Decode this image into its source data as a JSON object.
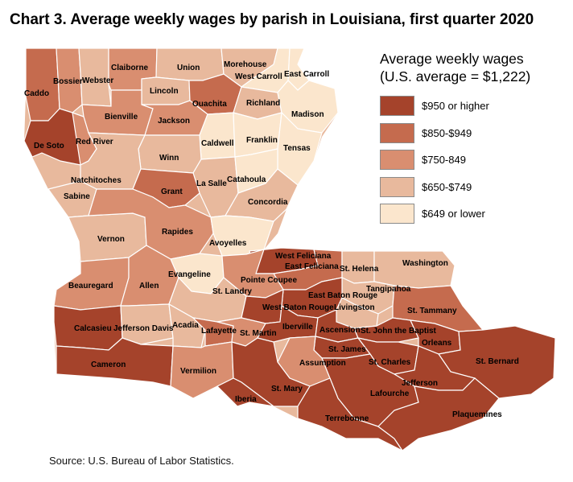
{
  "title": "Chart 3. Average weekly wages by parish in Louisiana, first quarter 2020",
  "legend": {
    "title_line1": "Average weekly wages",
    "title_line2": "(U.S. average = $1,222)",
    "items": [
      {
        "label": "$950 or higher",
        "color": "#a5432b"
      },
      {
        "label": "$850-$949",
        "color": "#c56b4e"
      },
      {
        "label": "$750-849",
        "color": "#d98e70"
      },
      {
        "label": "$650-$749",
        "color": "#e8b99d"
      },
      {
        "label": "$649 or lower",
        "color": "#fbe6cd"
      }
    ]
  },
  "source": "Source: U.S. Bureau of Labor Statistics.",
  "parishes": [
    {
      "name": "Caddo",
      "class": "$850-$949",
      "color": "#c56b4e"
    },
    {
      "name": "Bossier",
      "class": "$750-849",
      "color": "#d98e70"
    },
    {
      "name": "Webster",
      "class": "$650-$749",
      "color": "#e8b99d"
    },
    {
      "name": "Claiborne",
      "class": "$750-849",
      "color": "#d98e70"
    },
    {
      "name": "Union",
      "class": "$650-$749",
      "color": "#e8b99d"
    },
    {
      "name": "Morehouse",
      "class": "$650-$749",
      "color": "#e8b99d"
    },
    {
      "name": "West Carroll",
      "class": "$649 or lower",
      "color": "#fbe6cd"
    },
    {
      "name": "East Carroll",
      "class": "$649 or lower",
      "color": "#fbe6cd"
    },
    {
      "name": "Lincoln",
      "class": "$650-$749",
      "color": "#e8b99d"
    },
    {
      "name": "Ouachita",
      "class": "$850-$949",
      "color": "#c56b4e"
    },
    {
      "name": "Richland",
      "class": "$650-$749",
      "color": "#e8b99d"
    },
    {
      "name": "Madison",
      "class": "$649 or lower",
      "color": "#fbe6cd"
    },
    {
      "name": "Bienville",
      "class": "$750-849",
      "color": "#d98e70"
    },
    {
      "name": "Jackson",
      "class": "$750-849",
      "color": "#d98e70"
    },
    {
      "name": "De Soto",
      "class": "$950 or higher",
      "color": "#a5432b"
    },
    {
      "name": "Red River",
      "class": "$750-849",
      "color": "#d98e70"
    },
    {
      "name": "Caldwell",
      "class": "$649 or lower",
      "color": "#fbe6cd"
    },
    {
      "name": "Franklin",
      "class": "$649 or lower",
      "color": "#fbe6cd"
    },
    {
      "name": "Tensas",
      "class": "$649 or lower",
      "color": "#fbe6cd"
    },
    {
      "name": "Winn",
      "class": "$650-$749",
      "color": "#e8b99d"
    },
    {
      "name": "Natchitoches",
      "class": "$650-$749",
      "color": "#e8b99d"
    },
    {
      "name": "La Salle",
      "class": "$650-$749",
      "color": "#e8b99d"
    },
    {
      "name": "Catahoula",
      "class": "$649 or lower",
      "color": "#fbe6cd"
    },
    {
      "name": "Grant",
      "class": "$850-$949",
      "color": "#c56b4e"
    },
    {
      "name": "Sabine",
      "class": "$650-$749",
      "color": "#e8b99d"
    },
    {
      "name": "Concordia",
      "class": "$650-$749",
      "color": "#e8b99d"
    },
    {
      "name": "Vernon",
      "class": "$650-$749",
      "color": "#e8b99d"
    },
    {
      "name": "Rapides",
      "class": "$750-849",
      "color": "#d98e70"
    },
    {
      "name": "Avoyelles",
      "class": "$649 or lower",
      "color": "#fbe6cd"
    },
    {
      "name": "West Feliciana",
      "class": "$950 or higher",
      "color": "#a5432b"
    },
    {
      "name": "East Feliciana",
      "class": "$850-$949",
      "color": "#c56b4e"
    },
    {
      "name": "St. Helena",
      "class": "$650-$749",
      "color": "#e8b99d"
    },
    {
      "name": "Washington",
      "class": "$650-$749",
      "color": "#e8b99d"
    },
    {
      "name": "Evangeline",
      "class": "$649 or lower",
      "color": "#fbe6cd"
    },
    {
      "name": "Pointe Coupee",
      "class": "$750-849",
      "color": "#d98e70"
    },
    {
      "name": "Tangipahoa",
      "class": "$650-$749",
      "color": "#e8b99d"
    },
    {
      "name": "Beauregard",
      "class": "$750-849",
      "color": "#d98e70"
    },
    {
      "name": "Allen",
      "class": "$750-849",
      "color": "#d98e70"
    },
    {
      "name": "St. Landry",
      "class": "$650-$749",
      "color": "#e8b99d"
    },
    {
      "name": "East Baton Rouge",
      "class": "$950 or higher",
      "color": "#a5432b"
    },
    {
      "name": "West Baton Rouge",
      "class": "$950 or higher",
      "color": "#a5432b"
    },
    {
      "name": "Livingston",
      "class": "$650-$749",
      "color": "#e8b99d"
    },
    {
      "name": "St. Tammany",
      "class": "$850-$949",
      "color": "#c56b4e"
    },
    {
      "name": "Calcasieu",
      "class": "$950 or higher",
      "color": "#a5432b"
    },
    {
      "name": "Jefferson Davis",
      "class": "$650-$749",
      "color": "#e8b99d"
    },
    {
      "name": "Acadia",
      "class": "$650-$749",
      "color": "#e8b99d"
    },
    {
      "name": "Lafayette",
      "class": "$850-$949",
      "color": "#c56b4e"
    },
    {
      "name": "St. Martin",
      "class": "$750-849",
      "color": "#d98e70"
    },
    {
      "name": "Iberville",
      "class": "$950 or higher",
      "color": "#a5432b"
    },
    {
      "name": "Ascension",
      "class": "$950 or higher",
      "color": "#a5432b"
    },
    {
      "name": "St. John the Baptist",
      "class": "$950 or higher",
      "color": "#a5432b"
    },
    {
      "name": "Orleans",
      "class": "$950 or higher",
      "color": "#a5432b"
    },
    {
      "name": "St. James",
      "class": "$950 or higher",
      "color": "#a5432b"
    },
    {
      "name": "St. Charles",
      "class": "$950 or higher",
      "color": "#a5432b"
    },
    {
      "name": "Assumption",
      "class": "$750-849",
      "color": "#d98e70"
    },
    {
      "name": "St. Bernard",
      "class": "$950 or higher",
      "color": "#a5432b"
    },
    {
      "name": "Cameron",
      "class": "$950 or higher",
      "color": "#a5432b"
    },
    {
      "name": "Vermilion",
      "class": "$750-849",
      "color": "#d98e70"
    },
    {
      "name": "Jefferson",
      "class": "$950 or higher",
      "color": "#a5432b"
    },
    {
      "name": "St. Mary",
      "class": "$950 or higher",
      "color": "#a5432b"
    },
    {
      "name": "Iberia",
      "class": "$950 or higher",
      "color": "#a5432b"
    },
    {
      "name": "Lafourche",
      "class": "$950 or higher",
      "color": "#a5432b"
    },
    {
      "name": "Terrebonne",
      "class": "$950 or higher",
      "color": "#a5432b"
    },
    {
      "name": "Plaquemines",
      "class": "$950 or higher",
      "color": "#a5432b"
    }
  ]
}
